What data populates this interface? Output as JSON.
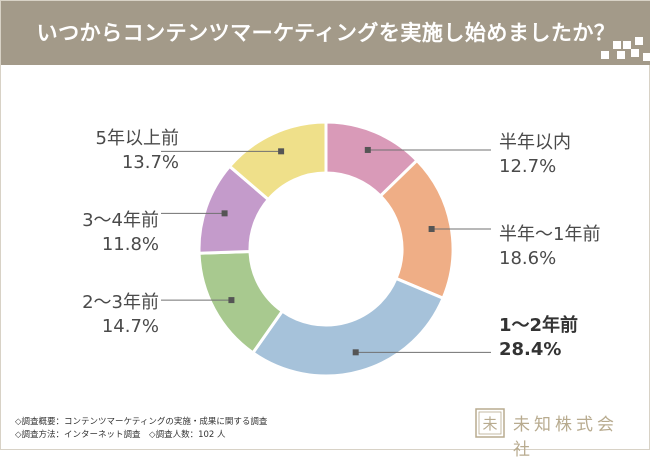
{
  "header": {
    "title": "いつからコンテンツマーケティングを実施し始めましたか？"
  },
  "colors": {
    "banner": "#a39a89",
    "line": "#707070",
    "marker": "#555555"
  },
  "chart_data": {
    "type": "pie",
    "variant": "donut",
    "title": "いつからコンテンツマーケティングを実施し始めましたか？",
    "unit": "%",
    "slices": [
      {
        "label": "半年以内",
        "value": 12.7,
        "value_text": "12.7%",
        "color": "#d99ab8",
        "bold": false
      },
      {
        "label": "半年〜1年前",
        "value": 18.6,
        "value_text": "18.6%",
        "color": "#efae86",
        "bold": false
      },
      {
        "label": "1〜2年前",
        "value": 28.4,
        "value_text": "28.4%",
        "color": "#a6c2da",
        "bold": true
      },
      {
        "label": "2〜3年前",
        "value": 14.7,
        "value_text": "14.7%",
        "color": "#a8c98f",
        "bold": false
      },
      {
        "label": "3〜4年前",
        "value": 11.8,
        "value_text": "11.8%",
        "color": "#c49bcb",
        "bold": false
      },
      {
        "label": "5年以上前",
        "value": 13.7,
        "value_text": "13.7%",
        "color": "#efe08a",
        "bold": false
      }
    ]
  },
  "footer": {
    "line1": "◇調査概要：コンテンツマーケティングの実施・成果に関する調査",
    "line2": "◇調査方法：インターネット調査　◇調査人数：102 人"
  },
  "logo": {
    "text": "未知株式会社",
    "mark_text": "未"
  }
}
